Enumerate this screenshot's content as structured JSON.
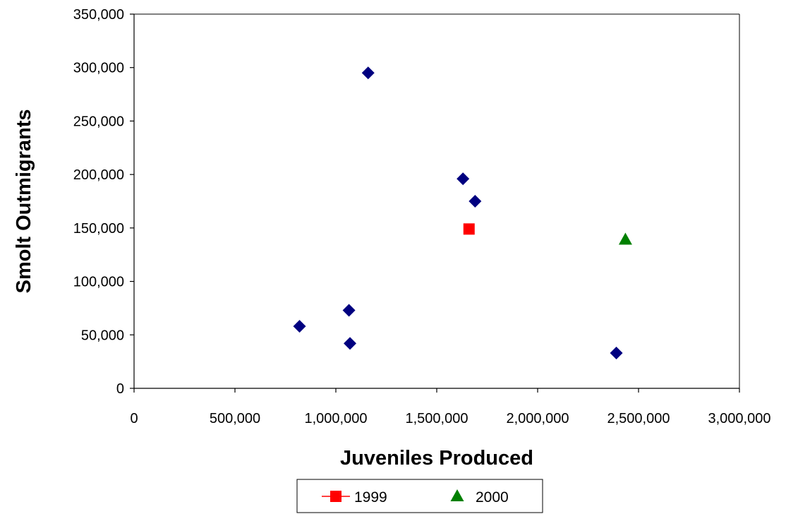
{
  "chart_data": {
    "type": "scatter",
    "title": "",
    "xlabel": "Juveniles Produced",
    "ylabel": "Smolt Outmigrants",
    "xlim": [
      0,
      3000000
    ],
    "ylim": [
      0,
      350000
    ],
    "x_ticks": [
      0,
      500000,
      1000000,
      1500000,
      2000000,
      2500000,
      3000000
    ],
    "x_tick_labels": [
      "0",
      "500,000",
      "1,000,000",
      "1,500,000",
      "2,000,000",
      "2,500,000",
      "3,000,000"
    ],
    "y_ticks": [
      0,
      50000,
      100000,
      150000,
      200000,
      250000,
      300000,
      350000
    ],
    "y_tick_labels": [
      "0",
      "50,000",
      "100,000",
      "150,000",
      "200,000",
      "250,000",
      "300,000",
      "350,000"
    ],
    "grid": false,
    "legend_position": "bottom",
    "series": [
      {
        "marker": "diamond",
        "color": "#000080",
        "in_legend": false,
        "points": [
          {
            "x": 820000,
            "y": 58000
          },
          {
            "x": 1065000,
            "y": 73000
          },
          {
            "x": 1070000,
            "y": 42000
          },
          {
            "x": 1160000,
            "y": 295000
          },
          {
            "x": 1630000,
            "y": 196000
          },
          {
            "x": 1690000,
            "y": 175000
          },
          {
            "x": 2390000,
            "y": 33000
          }
        ]
      },
      {
        "name": "1999",
        "marker": "square",
        "color": "#ff0000",
        "in_legend": true,
        "points": [
          {
            "x": 1660000,
            "y": 149000
          }
        ]
      },
      {
        "name": "2000",
        "marker": "triangle",
        "color": "#008000",
        "in_legend": true,
        "points": [
          {
            "x": 2435000,
            "y": 139000
          }
        ]
      }
    ]
  }
}
